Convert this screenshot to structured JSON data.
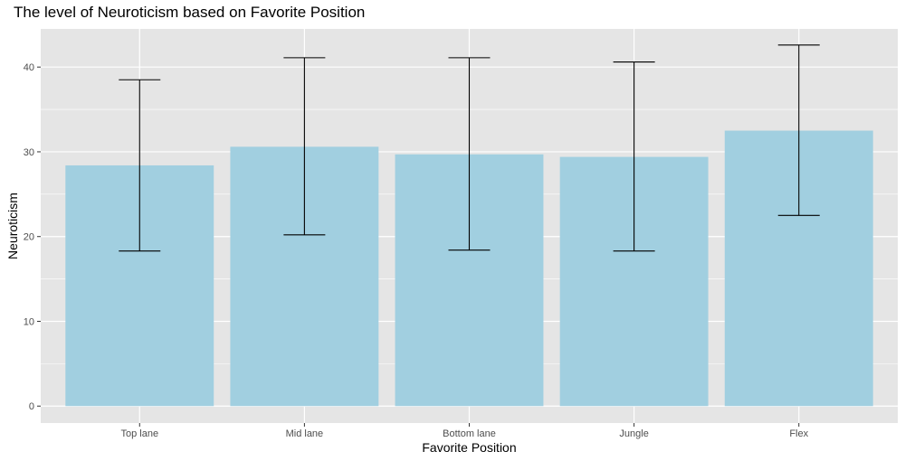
{
  "chart_data": {
    "type": "bar",
    "title": "The level of Neuroticism based on Favorite Position",
    "xlabel": "Favorite Position",
    "ylabel": "Neuroticism",
    "categories": [
      "Top lane",
      "Mid lane",
      "Bottom lane",
      "Jungle",
      "Flex"
    ],
    "values": [
      28.4,
      30.6,
      29.7,
      29.4,
      32.5
    ],
    "error_bars": {
      "lower": [
        18.3,
        20.2,
        18.4,
        18.3,
        22.5
      ],
      "upper": [
        38.5,
        41.1,
        41.1,
        40.6,
        42.6
      ]
    },
    "ylim": [
      -2,
      44.5
    ],
    "yticks": [
      0,
      10,
      20,
      30,
      40
    ],
    "grid": true,
    "bar_color": "#a1cfe0",
    "panel_background": "#e5e5e5",
    "grid_color": "#ffffff"
  }
}
